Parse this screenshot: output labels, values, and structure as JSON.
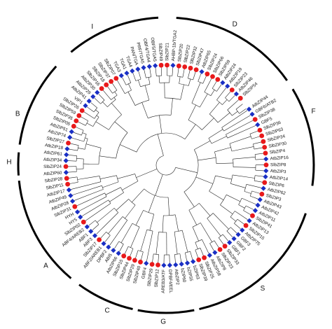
{
  "tree": {
    "leaves": [
      {
        "label": "AtbZIP44",
        "m": "d"
      },
      {
        "label": "GBF6/ATB2",
        "m": "d"
      },
      {
        "label": "SlbZIP38",
        "m": "c"
      },
      {
        "label": "GBF5",
        "m": "d"
      },
      {
        "label": "SlbZIP36",
        "m": "c"
      },
      {
        "label": "SlbZIP63",
        "m": "c"
      },
      {
        "label": "SlbZIP34",
        "m": "c"
      },
      {
        "label": "SlbZIP30",
        "m": "c"
      },
      {
        "label": "SlbZIP4",
        "m": "c"
      },
      {
        "label": "AtbZIP16",
        "m": "d"
      },
      {
        "label": "SlbZIP8",
        "m": "c"
      },
      {
        "label": "AtbZIP3",
        "m": "d"
      },
      {
        "label": "AtbZIP14",
        "m": "d"
      },
      {
        "label": "SlbZIP6",
        "m": "c"
      },
      {
        "label": "AtbZIP62",
        "m": "d"
      },
      {
        "label": "SlbZIP3",
        "m": "c"
      },
      {
        "label": "AtbZIP43",
        "m": "d"
      },
      {
        "label": "AtbZIP42",
        "m": "d"
      },
      {
        "label": "AtbZIP11",
        "m": "d"
      },
      {
        "label": "SlbZIP41",
        "m": "c"
      },
      {
        "label": "AtbZIP13",
        "m": "d"
      },
      {
        "label": "SlbZIP15",
        "m": "c"
      },
      {
        "label": "AtbZIP75",
        "m": "d"
      },
      {
        "label": "GBF3",
        "m": "d"
      },
      {
        "label": "GBF2",
        "m": "d"
      },
      {
        "label": "GBF1",
        "m": "d"
      },
      {
        "label": "SlbZIP33",
        "m": "c"
      },
      {
        "label": "SlbZIP23",
        "m": "c"
      },
      {
        "label": "AtbZIP8",
        "m": "d"
      },
      {
        "label": "AtbZIP58",
        "m": "d"
      },
      {
        "label": "SlbZIP25",
        "m": "c"
      },
      {
        "label": "SlbZIP39",
        "m": "c"
      },
      {
        "label": "bZIP63",
        "m": "d"
      },
      {
        "label": "bZIP55",
        "m": "d"
      },
      {
        "label": "bZIP60",
        "m": "d"
      },
      {
        "label": "AtbZIP2",
        "m": "d"
      },
      {
        "label": "DPBF4/EEL",
        "m": "d"
      },
      {
        "label": "AREB3/ATF",
        "m": "d"
      },
      {
        "label": "SlbZIP12",
        "m": "c"
      },
      {
        "label": "SlbZIP29",
        "m": "c"
      },
      {
        "label": "GBF4",
        "m": "d"
      },
      {
        "label": "SlbZIP40",
        "m": "c"
      },
      {
        "label": "SlbZIP29",
        "m": "c"
      },
      {
        "label": "SlbZIP44",
        "m": "c"
      },
      {
        "label": "SlbZIP15",
        "m": "c"
      },
      {
        "label": "AtbZIP66",
        "m": "d"
      },
      {
        "label": "ABI5",
        "m": "d"
      },
      {
        "label": "DPBF2",
        "m": "d"
      },
      {
        "label": "ABF2/AREB1",
        "m": "d"
      },
      {
        "label": "SlbZIP17",
        "m": "c"
      },
      {
        "label": "ABF3",
        "m": "d"
      },
      {
        "label": "ABF1",
        "m": "d"
      },
      {
        "label": "ABF4/AREB2",
        "m": "d"
      },
      {
        "label": "SlbZIP02",
        "m": "c"
      },
      {
        "label": "HY5",
        "m": "d"
      },
      {
        "label": "HYH",
        "m": "d"
      },
      {
        "label": "SlbZIP31",
        "m": "c"
      },
      {
        "label": "AtbZIP28",
        "m": "d"
      },
      {
        "label": "AtbZIP49",
        "m": "d"
      },
      {
        "label": "AtbZIP17",
        "m": "d"
      },
      {
        "label": "SlbZIP11",
        "m": "c"
      },
      {
        "label": "SlbZIP28",
        "m": "c"
      },
      {
        "label": "AtbZIP60",
        "m": "d"
      },
      {
        "label": "SlbZIP24",
        "m": "c"
      },
      {
        "label": "AtbZIP34",
        "m": "d"
      },
      {
        "label": "AtbZIP61",
        "m": "d"
      },
      {
        "label": "AtbZIP18",
        "m": "d"
      },
      {
        "label": "SlbZIP27",
        "m": "c"
      },
      {
        "label": "AtbZIP74",
        "m": "d"
      },
      {
        "label": "AtbZIP51",
        "m": "d"
      },
      {
        "label": "SlbZIP05",
        "m": "c"
      },
      {
        "label": "SlbZIP35",
        "m": "c"
      },
      {
        "label": "SlbZIP59",
        "m": "c"
      },
      {
        "label": "SlbZIP26",
        "m": "c"
      },
      {
        "label": "VIP1",
        "m": "d"
      },
      {
        "label": "AtbZIP41",
        "m": "d"
      },
      {
        "label": "AtbZIP29",
        "m": "d"
      },
      {
        "label": "AtbZIP30",
        "m": "d"
      },
      {
        "label": "SlbZIP16",
        "m": "c"
      },
      {
        "label": "SlbZIP18",
        "m": "c"
      },
      {
        "label": "SlbZIP37",
        "m": "c"
      },
      {
        "label": "SlbZIP07",
        "m": "c"
      },
      {
        "label": "TGA3",
        "m": "d"
      },
      {
        "label": "TGA1",
        "m": "d"
      },
      {
        "label": "TGA4",
        "m": "d"
      },
      {
        "label": "PAN/TGA",
        "m": "d"
      },
      {
        "label": "PRF/TGA5",
        "m": "d"
      },
      {
        "label": "OBF4/TGA4",
        "m": "d"
      },
      {
        "label": "OBF5/TGA5",
        "m": "d"
      },
      {
        "label": "SlbZIP49",
        "m": "c"
      },
      {
        "label": "SlbZIP21",
        "m": "c"
      },
      {
        "label": "AHBP-1b/TGA2",
        "m": "d"
      },
      {
        "label": "SlbZIP20",
        "m": "c"
      },
      {
        "label": "SlbZIP22",
        "m": "c"
      },
      {
        "label": "SlbZIP32",
        "m": "c"
      },
      {
        "label": "SlbZIP47",
        "m": "c"
      },
      {
        "label": "AtbZIP65",
        "m": "d"
      },
      {
        "label": "SlbZIP24",
        "m": "c"
      },
      {
        "label": "SlbZIP66",
        "m": "c"
      },
      {
        "label": "SlbZIP59",
        "m": "c"
      },
      {
        "label": "AtbZIP24",
        "m": "d"
      },
      {
        "label": "AtbZIP19",
        "m": "d"
      },
      {
        "label": "SlbZIP23",
        "m": "c"
      },
      {
        "label": "AtbZIP46",
        "m": "d"
      },
      {
        "label": "SlbZIP54",
        "m": "c"
      }
    ],
    "groups": [
      {
        "name": "I"
      },
      {
        "name": "D"
      },
      {
        "name": "F"
      },
      {
        "name": "S"
      },
      {
        "name": "G"
      },
      {
        "name": "C"
      },
      {
        "name": "A"
      },
      {
        "name": "H"
      },
      {
        "name": "B"
      }
    ],
    "colors": {
      "circle": "#e8191b",
      "diamond": "#1a2fc4",
      "arc": "#000000"
    }
  }
}
